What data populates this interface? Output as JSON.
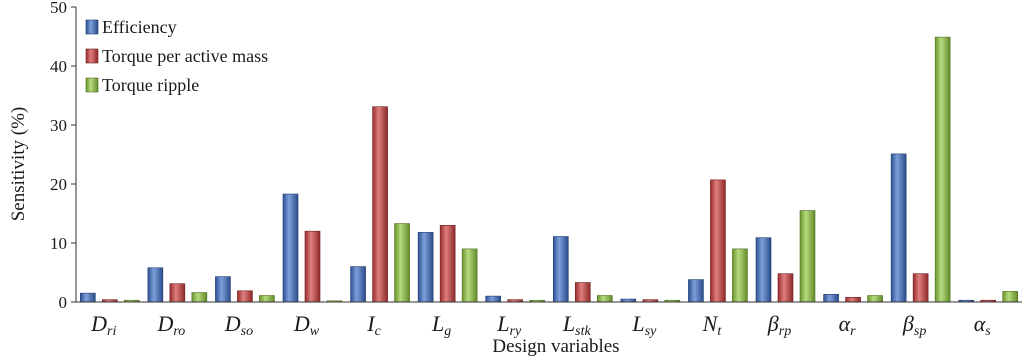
{
  "chart_data": {
    "type": "bar",
    "title": "",
    "xlabel": "Design variables",
    "ylabel": "Sensitivity (%)",
    "ylim": [
      0,
      50
    ],
    "yticks": [
      0,
      10,
      20,
      30,
      40,
      50
    ],
    "grid": false,
    "legend_position": "top-left",
    "categories": [
      {
        "main": "D",
        "sub": "ri"
      },
      {
        "main": "D",
        "sub": "ro"
      },
      {
        "main": "D",
        "sub": "so"
      },
      {
        "main": "D",
        "sub": "w"
      },
      {
        "main": "I",
        "sub": "c"
      },
      {
        "main": "L",
        "sub": "g"
      },
      {
        "main": "L",
        "sub": "ry"
      },
      {
        "main": "L",
        "sub": "stk"
      },
      {
        "main": "L",
        "sub": "sy"
      },
      {
        "main": "N",
        "sub": "t"
      },
      {
        "main": "β",
        "sub": "rp"
      },
      {
        "main": "α",
        "sub": "r"
      },
      {
        "main": "β",
        "sub": "sp"
      },
      {
        "main": "α",
        "sub": "s"
      }
    ],
    "series": [
      {
        "name": "Efficiency",
        "color": "#3a6cc6",
        "values": [
          1.5,
          5.8,
          4.3,
          18.3,
          6.0,
          11.8,
          1.0,
          11.1,
          0.5,
          3.8,
          10.9,
          1.3,
          25.1,
          0.3
        ]
      },
      {
        "name": "Torque per active mass",
        "color": "#cc3a3a",
        "values": [
          0.4,
          3.1,
          1.9,
          12.0,
          33.1,
          13.0,
          0.4,
          3.3,
          0.4,
          20.7,
          4.8,
          0.8,
          4.8,
          0.3
        ]
      },
      {
        "name": "Torque ripple",
        "color": "#8ec63a",
        "values": [
          0.3,
          1.6,
          1.1,
          0.2,
          13.3,
          9.0,
          0.3,
          1.1,
          0.3,
          9.0,
          15.5,
          1.1,
          44.9,
          1.8
        ]
      }
    ]
  }
}
